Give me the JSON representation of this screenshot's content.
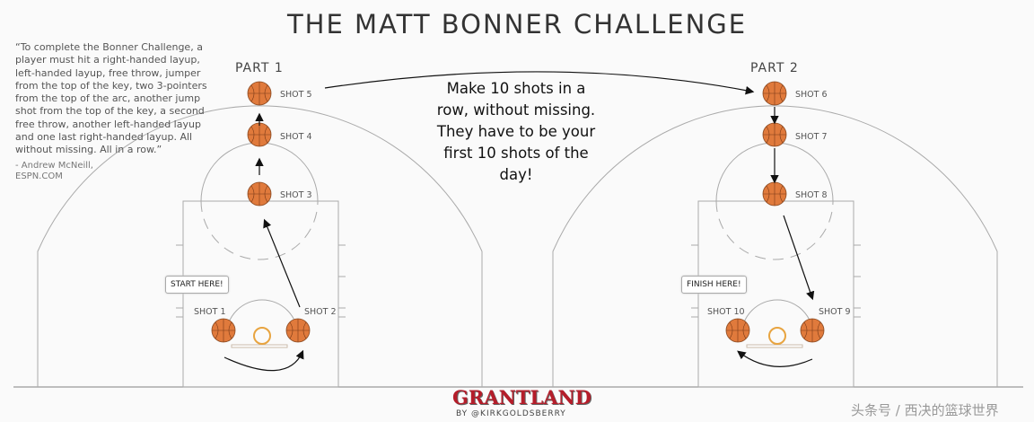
{
  "title": "THE MATT BONNER CHALLENGE",
  "quote": {
    "text": "“To complete the Bonner Challenge, a player must hit a right-handed layup, left-handed layup, free throw, jumper from the top of the key, two 3-pointers from the top of the arc, another jump shot from the top of the key, a second free throw, another left-handed layup and one last right-handed layup. All without missing. All in a row.”",
    "attribution": "- Andrew McNeill,",
    "source": "ESPN.COM"
  },
  "parts": {
    "part1": "PART 1",
    "part2": "PART 2"
  },
  "center_text": "Make 10 shots in a row, without missing. They have to be your first 10 shots of the day!",
  "shots": [
    "SHOT 1",
    "SHOT 2",
    "SHOT 3",
    "SHOT 4",
    "SHOT 5",
    "SHOT 6",
    "SHOT 7",
    "SHOT 8",
    "SHOT 9",
    "SHOT 10"
  ],
  "callouts": {
    "start": "START HERE!",
    "finish": "FINISH HERE!"
  },
  "branding": {
    "logo": "GRANTLAND",
    "byline": "BY @KIRKGOLDSBERRY",
    "watermark": "头条号 / 西决的篮球世界"
  },
  "colors": {
    "ball": "#e07a3c",
    "rim": "#e8a440",
    "logo": "#b51d2a"
  }
}
